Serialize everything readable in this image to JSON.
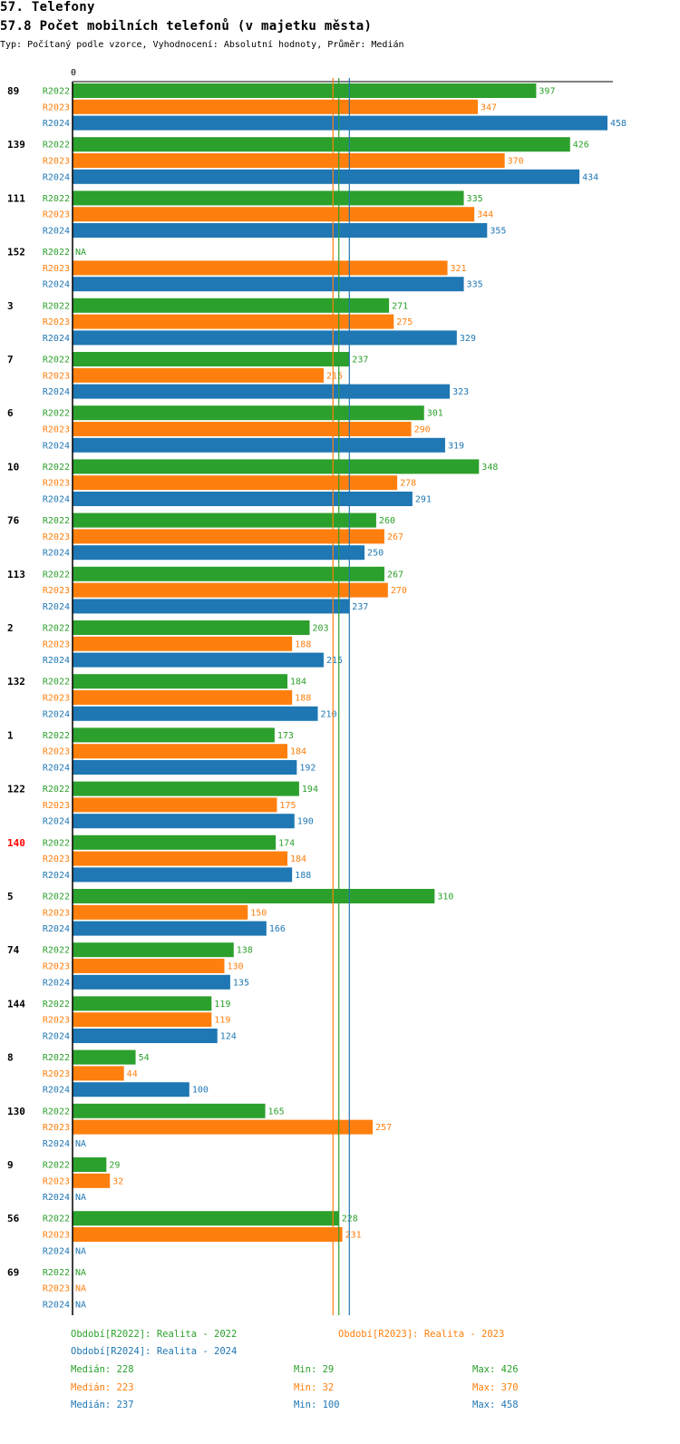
{
  "header": {
    "title": "57. Telefony",
    "subtitle": "57.8 Počet mobilních telefonů (v majetku města)",
    "info": "Typ: Počítaný podle vzorce, Vyhodnocení: Absolutní hodnoty, Průměr: Medián"
  },
  "colors": {
    "R2022": "#2ca02c",
    "R2023": "#ff7f0e",
    "R2024": "#1f77b4",
    "highlight": "#ff0000"
  },
  "chart_data": {
    "type": "bar",
    "orientation": "horizontal",
    "x_axis_zero_label": "0",
    "xlim": [
      0,
      458
    ],
    "highlighted_category": "140",
    "series_names": [
      "R2022",
      "R2023",
      "R2024"
    ],
    "na_label": "NA",
    "categories": [
      "89",
      "139",
      "111",
      "152",
      "3",
      "7",
      "6",
      "10",
      "76",
      "113",
      "2",
      "132",
      "1",
      "122",
      "140",
      "5",
      "74",
      "144",
      "8",
      "130",
      "9",
      "56",
      "69"
    ],
    "series": [
      {
        "name": "R2022",
        "values": [
          397,
          426,
          335,
          null,
          271,
          237,
          301,
          348,
          260,
          267,
          203,
          184,
          173,
          194,
          174,
          310,
          138,
          119,
          54,
          165,
          29,
          228,
          null
        ]
      },
      {
        "name": "R2023",
        "values": [
          347,
          370,
          344,
          321,
          275,
          215,
          290,
          278,
          267,
          270,
          188,
          188,
          184,
          175,
          184,
          150,
          130,
          119,
          44,
          257,
          32,
          231,
          null
        ]
      },
      {
        "name": "R2024",
        "values": [
          458,
          434,
          355,
          335,
          329,
          323,
          319,
          291,
          250,
          237,
          215,
          210,
          192,
          190,
          188,
          166,
          135,
          124,
          100,
          null,
          null,
          null,
          null
        ]
      }
    ],
    "reference_lines": [
      {
        "series": "R2022",
        "type": "median",
        "value": 228
      },
      {
        "series": "R2023",
        "type": "median",
        "value": 223
      },
      {
        "series": "R2024",
        "type": "median",
        "value": 237
      }
    ]
  },
  "legend": {
    "periods": {
      "R2022": "Období[R2022]: Realita - 2022",
      "R2023": "Období[R2023]: Realita - 2023",
      "R2024": "Období[R2024]: Realita - 2024"
    },
    "stats": [
      {
        "series": "R2022",
        "median": "Medián: 228",
        "min": "Min: 29",
        "max": "Max: 426"
      },
      {
        "series": "R2023",
        "median": "Medián: 223",
        "min": "Min: 32",
        "max": "Max: 370"
      },
      {
        "series": "R2024",
        "median": "Medián: 237",
        "min": "Min: 100",
        "max": "Max: 458"
      }
    ]
  }
}
